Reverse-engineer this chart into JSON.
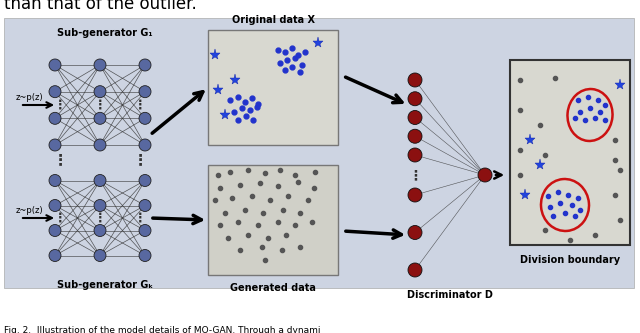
{
  "bg_color": "#cdd4e2",
  "fig_bg": "#ffffff",
  "title_text": "than that of the outlier.",
  "caption_text": "Fig. 2.  Illustration of the model details of MO-GAN. Through a dynami",
  "panel_bg_orig": "#d8d8d0",
  "panel_bg_gen": "#d0d0c8",
  "panel_bg_div": "#d8d8d0",
  "nn_node_color_gen": "#5868a0",
  "nn_node_color_disc": "#8b1010",
  "original_data_title": "Original data X",
  "generated_data_title": "Generated data",
  "discriminator_label": "Discriminator D",
  "division_label": "Division boundary",
  "subgen1_label": "Sub-generator G₁",
  "subgen2_label": "Sub-generator Gₖ",
  "z_label1": "z~p(z)",
  "z_label2": "z~p(z)"
}
